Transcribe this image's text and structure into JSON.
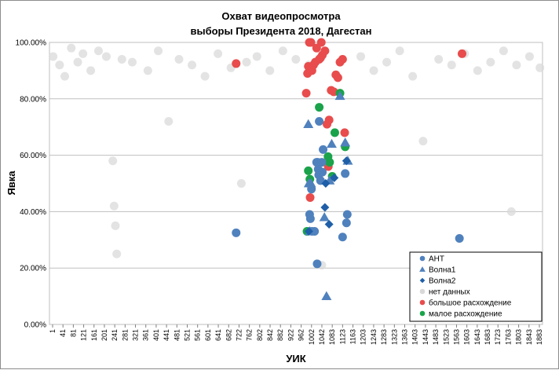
{
  "chart_data": {
    "type": "scatter",
    "title": "Охват видеопросмотра",
    "subtitle": "выборы Президента 2018, Дагестан",
    "xlabel": "УИК",
    "ylabel": "Явка",
    "xlim": [
      1,
      1900
    ],
    "ylim": [
      0,
      1
    ],
    "y_ticks": [
      "0.00%",
      "20.00%",
      "40.00%",
      "60.00%",
      "80.00%",
      "100.00%"
    ],
    "x_ticks": [
      "1",
      "41",
      "81",
      "121",
      "161",
      "201",
      "241",
      "281",
      "321",
      "361",
      "401",
      "441",
      "481",
      "521",
      "561",
      "601",
      "641",
      "682",
      "722",
      "762",
      "802",
      "842",
      "882",
      "922",
      "962",
      "1002",
      "1042",
      "1083",
      "1123",
      "1163",
      "1203",
      "1243",
      "1283",
      "1323",
      "1363",
      "1403",
      "1443",
      "1483",
      "1523",
      "1563",
      "1603",
      "1643",
      "1683",
      "1723",
      "1763",
      "1803",
      "1843",
      "1883"
    ],
    "grid": "horizontal",
    "legend_position": "bottom-right",
    "series": [
      {
        "name": "АНТ",
        "marker": "circle",
        "color": "#4f81bd",
        "points": [
          [
            720,
            0.325
          ],
          [
            1003,
            0.39
          ],
          [
            1006,
            0.375
          ],
          [
            1010,
            0.48
          ],
          [
            1012,
            0.33
          ],
          [
            1022,
            0.33
          ],
          [
            1030,
            0.575
          ],
          [
            1032,
            0.215
          ],
          [
            1034,
            0.575
          ],
          [
            1036,
            0.55
          ],
          [
            1038,
            0.53
          ],
          [
            1040,
            0.72
          ],
          [
            1045,
            0.51
          ],
          [
            1050,
            0.575
          ],
          [
            1052,
            0.54
          ],
          [
            1055,
            0.62
          ],
          [
            1130,
            0.31
          ],
          [
            1140,
            0.535
          ],
          [
            1145,
            0.36
          ],
          [
            1148,
            0.39
          ],
          [
            1580,
            0.305
          ]
        ]
      },
      {
        "name": "Волна1",
        "marker": "triangle",
        "color": "#4f81bd",
        "points": [
          [
            998,
            0.71
          ],
          [
            1000,
            0.5
          ],
          [
            1004,
            0.33
          ],
          [
            1008,
            0.5
          ],
          [
            1060,
            0.38
          ],
          [
            1068,
            0.1
          ],
          [
            1080,
            0.51
          ],
          [
            1088,
            0.64
          ],
          [
            1120,
            0.81
          ],
          [
            1140,
            0.645
          ],
          [
            1150,
            0.58
          ]
        ]
      },
      {
        "name": "Волна2",
        "marker": "diamond",
        "color": "#1f5fa8",
        "points": [
          [
            1000,
            0.33
          ],
          [
            1062,
            0.415
          ],
          [
            1065,
            0.5
          ],
          [
            1078,
            0.355
          ],
          [
            1098,
            0.52
          ],
          [
            1145,
            0.58
          ]
        ]
      },
      {
        "name": "нет данных",
        "marker": "circle",
        "color": "#d9d9d9",
        "points": [
          [
            15,
            0.95
          ],
          [
            40,
            0.92
          ],
          [
            60,
            0.88
          ],
          [
            85,
            0.98
          ],
          [
            110,
            0.93
          ],
          [
            130,
            0.96
          ],
          [
            160,
            0.9
          ],
          [
            190,
            0.97
          ],
          [
            220,
            0.95
          ],
          [
            245,
            0.58
          ],
          [
            250,
            0.42
          ],
          [
            255,
            0.35
          ],
          [
            260,
            0.25
          ],
          [
            280,
            0.94
          ],
          [
            320,
            0.93
          ],
          [
            380,
            0.9
          ],
          [
            420,
            0.97
          ],
          [
            460,
            0.72
          ],
          [
            500,
            0.94
          ],
          [
            550,
            0.92
          ],
          [
            600,
            0.88
          ],
          [
            650,
            0.96
          ],
          [
            700,
            0.91
          ],
          [
            740,
            0.5
          ],
          [
            760,
            0.93
          ],
          [
            800,
            0.95
          ],
          [
            850,
            0.9
          ],
          [
            900,
            0.97
          ],
          [
            950,
            0.94
          ],
          [
            1000,
            0.92
          ],
          [
            1050,
            0.21
          ],
          [
            1200,
            0.95
          ],
          [
            1250,
            0.9
          ],
          [
            1300,
            0.93
          ],
          [
            1350,
            0.97
          ],
          [
            1400,
            0.88
          ],
          [
            1440,
            0.65
          ],
          [
            1500,
            0.94
          ],
          [
            1550,
            0.92
          ],
          [
            1600,
            0.96
          ],
          [
            1650,
            0.9
          ],
          [
            1700,
            0.93
          ],
          [
            1750,
            0.97
          ],
          [
            1780,
            0.4
          ],
          [
            1800,
            0.92
          ],
          [
            1850,
            0.95
          ],
          [
            1890,
            0.91
          ]
        ]
      },
      {
        "name": "большое расхождение",
        "marker": "circle",
        "color": "#e84c4c",
        "points": [
          [
            720,
            0.925
          ],
          [
            990,
            0.82
          ],
          [
            995,
            0.89
          ],
          [
            998,
            0.915
          ],
          [
            1002,
            1.0
          ],
          [
            1005,
            0.91
          ],
          [
            1008,
            1.0
          ],
          [
            1012,
            0.9
          ],
          [
            1018,
            0.92
          ],
          [
            1025,
            0.93
          ],
          [
            1030,
            0.98
          ],
          [
            1040,
            0.94
          ],
          [
            1045,
            0.945
          ],
          [
            1048,
            1.0
          ],
          [
            1052,
            0.955
          ],
          [
            1062,
            0.97
          ],
          [
            1070,
            0.71
          ],
          [
            1078,
            0.725
          ],
          [
            1086,
            0.83
          ],
          [
            1096,
            0.825
          ],
          [
            1104,
            0.885
          ],
          [
            1112,
            0.875
          ],
          [
            1120,
            0.93
          ],
          [
            1130,
            0.94
          ],
          [
            1138,
            0.68
          ],
          [
            1005,
            0.45
          ],
          [
            1075,
            0.56
          ],
          [
            1590,
            0.96
          ]
        ]
      },
      {
        "name": "малое расхождение",
        "marker": "circle",
        "color": "#1aa34a",
        "points": [
          [
            993,
            0.33
          ],
          [
            998,
            0.545
          ],
          [
            1004,
            0.515
          ],
          [
            1040,
            0.77
          ],
          [
            1074,
            0.595
          ],
          [
            1080,
            0.575
          ],
          [
            1090,
            0.525
          ],
          [
            1100,
            0.68
          ],
          [
            1120,
            0.82
          ],
          [
            1140,
            0.63
          ]
        ]
      }
    ]
  }
}
